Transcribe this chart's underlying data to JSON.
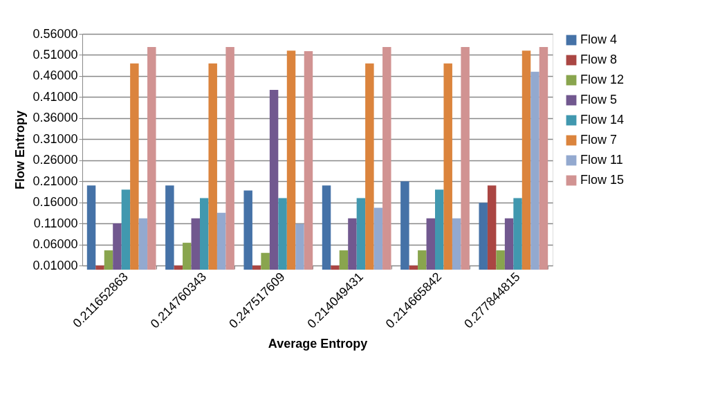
{
  "chart_data": {
    "type": "bar",
    "xlabel": "Average Entropy",
    "ylabel": "Flow Entropy",
    "categories": [
      "0.211652863",
      "0.214760343",
      "0.247517609",
      "0.214049431",
      "0.214665842",
      "0.277844815"
    ],
    "series": [
      {
        "name": "Flow 4",
        "color": "#4572a7",
        "values": [
          0.2,
          0.2,
          0.188,
          0.2,
          0.21,
          0.159
        ]
      },
      {
        "name": "Flow 8",
        "color": "#aa4643",
        "values": [
          0.01,
          0.01,
          0.01,
          0.01,
          0.01,
          0.2
        ]
      },
      {
        "name": "Flow 12",
        "color": "#89a54e",
        "values": [
          0.046,
          0.064,
          0.04,
          0.046,
          0.046,
          0.046
        ]
      },
      {
        "name": "Flow 5",
        "color": "#71588f",
        "values": [
          0.11,
          0.122,
          0.427,
          0.122,
          0.122,
          0.122
        ]
      },
      {
        "name": "Flow 14",
        "color": "#4198af",
        "values": [
          0.19,
          0.17,
          0.17,
          0.17,
          0.19,
          0.17
        ]
      },
      {
        "name": "Flow 7",
        "color": "#db843d",
        "values": [
          0.49,
          0.49,
          0.52,
          0.49,
          0.49,
          0.52
        ]
      },
      {
        "name": "Flow 11",
        "color": "#93a9cf",
        "values": [
          0.122,
          0.135,
          0.109,
          0.147,
          0.122,
          0.47
        ]
      },
      {
        "name": "Flow 15",
        "color": "#d19392",
        "values": [
          0.529,
          0.529,
          0.519,
          0.529,
          0.529,
          0.529
        ]
      }
    ],
    "ylim": [
      0.01,
      0.56
    ],
    "yticks": [
      {
        "value": 0.01,
        "label": "0.01000"
      },
      {
        "value": 0.06,
        "label": "0.06000"
      },
      {
        "value": 0.11,
        "label": "0.11000"
      },
      {
        "value": 0.16,
        "label": "0.16000"
      },
      {
        "value": 0.21,
        "label": "0.21000"
      },
      {
        "value": 0.26,
        "label": "0.26000"
      },
      {
        "value": 0.31,
        "label": "0.31000"
      },
      {
        "value": 0.36,
        "label": "0.36000"
      },
      {
        "value": 0.41,
        "label": "0.41000"
      },
      {
        "value": 0.46,
        "label": "0.46000"
      },
      {
        "value": 0.51,
        "label": "0.51000"
      },
      {
        "value": 0.56,
        "label": "0.56000"
      }
    ],
    "grid": "y",
    "legend": "right"
  }
}
